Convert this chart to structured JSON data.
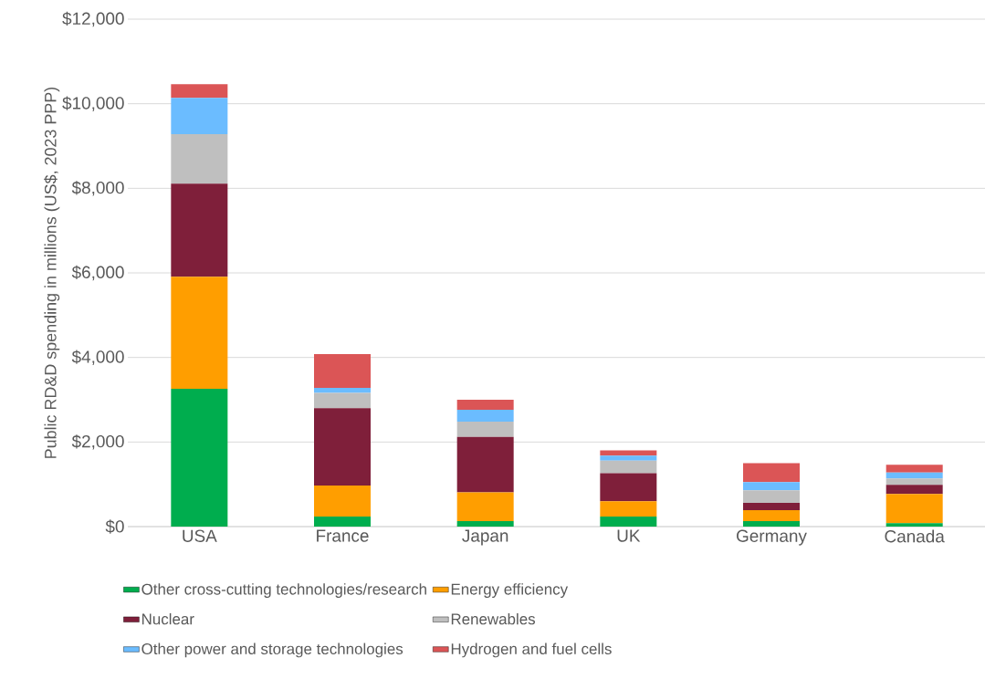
{
  "chart_data": {
    "type": "bar",
    "stacked": true,
    "ylabel": "Public RD&D spending in millions (US$, 2023 PPP)",
    "categories": [
      "USA",
      "France",
      "Japan",
      "UK",
      "Germany",
      "Canada"
    ],
    "series": [
      {
        "name": "Other cross-cutting technologies/research",
        "color": "#00ad4e",
        "values": [
          3260,
          240,
          130,
          240,
          130,
          80
        ]
      },
      {
        "name": "Energy efficiency",
        "color": "#ff9e00",
        "values": [
          2650,
          730,
          680,
          360,
          260,
          690
        ]
      },
      {
        "name": "Nuclear",
        "color": "#7f1f3a",
        "values": [
          2200,
          1830,
          1310,
          660,
          170,
          220
        ]
      },
      {
        "name": "Renewables",
        "color": "#bfbfbf",
        "values": [
          1170,
          360,
          360,
          300,
          300,
          150
        ]
      },
      {
        "name": "Other power and storage technologies",
        "color": "#6bbcff",
        "values": [
          860,
          120,
          280,
          120,
          190,
          140
        ]
      },
      {
        "name": "Hydrogen and fuel cells",
        "color": "#db5556",
        "values": [
          320,
          800,
          240,
          120,
          450,
          180
        ]
      }
    ],
    "ylim": [
      0,
      12000
    ],
    "yticks": [
      {
        "value": 0,
        "label": "$0"
      },
      {
        "value": 2000,
        "label": "$2,000"
      },
      {
        "value": 4000,
        "label": "$4,000"
      },
      {
        "value": 6000,
        "label": "$6,000"
      },
      {
        "value": 8000,
        "label": "$8,000"
      },
      {
        "value": 10000,
        "label": "$10,000"
      },
      {
        "value": 12000,
        "label": "$12,000"
      }
    ],
    "grid": "y",
    "legend": "bottom"
  }
}
